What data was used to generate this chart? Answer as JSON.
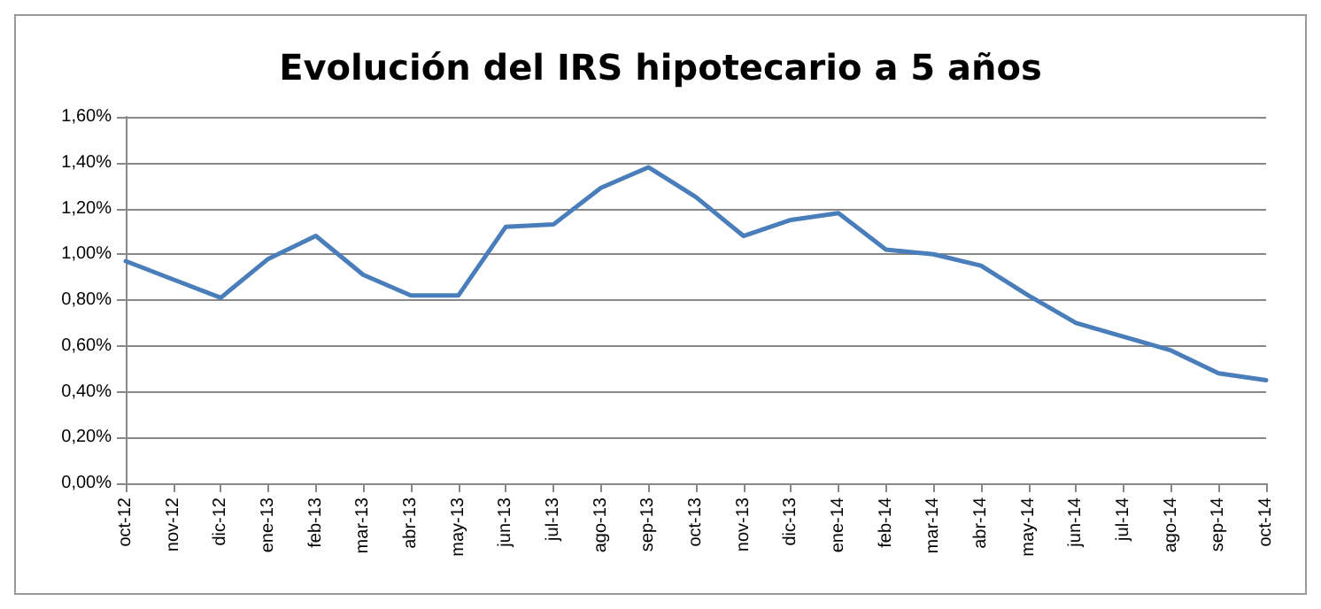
{
  "chart_data": {
    "type": "line",
    "title": "Evolución del IRS hipotecario a 5 años",
    "categories": [
      "oct-12",
      "nov-12",
      "dic-12",
      "ene-13",
      "feb-13",
      "mar-13",
      "abr-13",
      "may-13",
      "jun-13",
      "jul-13",
      "ago-13",
      "sep-13",
      "oct-13",
      "nov-13",
      "dic-13",
      "ene-14",
      "feb-14",
      "mar-14",
      "abr-14",
      "may-14",
      "jun-14",
      "jul-14",
      "ago-14",
      "sep-14",
      "oct-14"
    ],
    "series": [
      {
        "color": "#4a7ebb",
        "values": [
          0.97,
          0.89,
          0.81,
          0.98,
          1.08,
          0.91,
          0.82,
          0.82,
          1.12,
          1.13,
          1.29,
          1.38,
          1.25,
          1.08,
          1.15,
          1.18,
          1.02,
          1.0,
          0.95,
          0.82,
          0.7,
          0.64,
          0.58,
          0.48,
          0.45
        ]
      }
    ],
    "ylim": [
      0,
      1.6
    ],
    "yticks": [
      {
        "value": 0,
        "label": "0,00%"
      },
      {
        "value": 0.2,
        "label": "0,20%"
      },
      {
        "value": 0.4,
        "label": "0,40%"
      },
      {
        "value": 0.6,
        "label": "0,60%"
      },
      {
        "value": 0.8,
        "label": "0,80%"
      },
      {
        "value": 1.0,
        "label": "1,00%"
      },
      {
        "value": 1.2,
        "label": "1,20%"
      },
      {
        "value": 1.4,
        "label": "1,40%"
      },
      {
        "value": 1.6,
        "label": "1,60%"
      }
    ],
    "grid": "y",
    "marker": "none",
    "line_style": "solid"
  }
}
